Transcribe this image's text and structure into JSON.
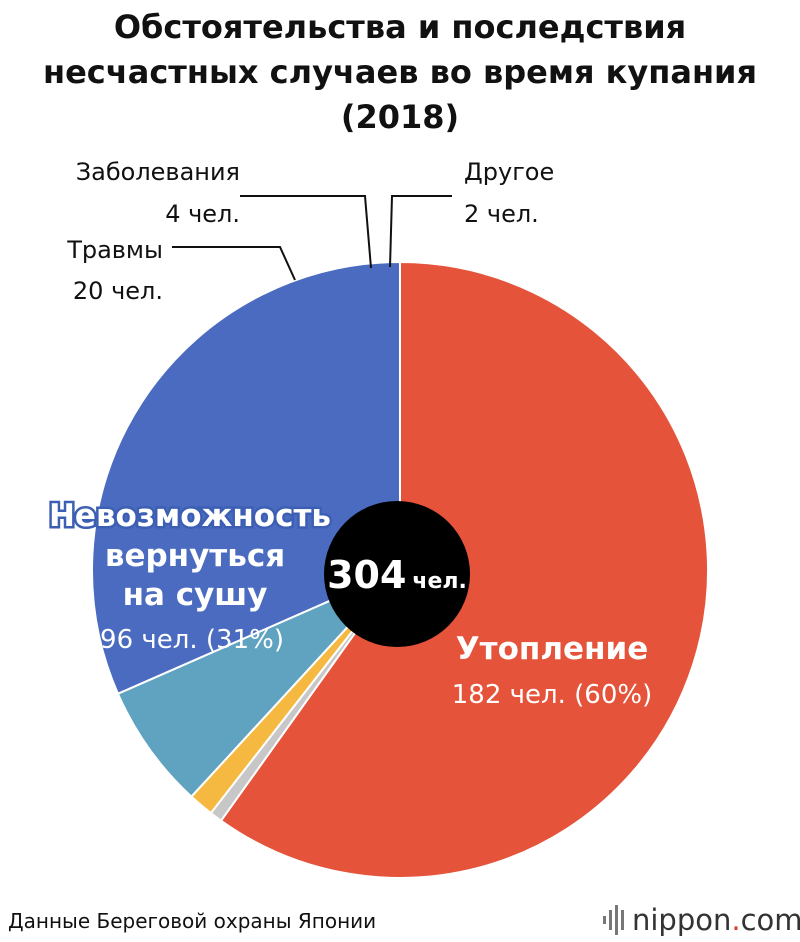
{
  "chart_data": {
    "type": "pie",
    "title": "Обстоятельства и последствия несчастных случаев во время купания (2018)",
    "title_lines": [
      "Обстоятельства и последствия",
      "несчастных случаев во время купания",
      "(2018)"
    ],
    "total": {
      "value": "304",
      "unit": "чел."
    },
    "slices": [
      {
        "name": "Утопление",
        "value": 182,
        "value_label": "182 чел. (60%)",
        "color": "#e5533a"
      },
      {
        "name": "Другое",
        "value": 2,
        "value_label": "2 чел.",
        "color": "#c7c7c7"
      },
      {
        "name": "Заболевания",
        "value": 4,
        "value_label": "4 чел.",
        "color": "#f5b942"
      },
      {
        "name": "Травмы",
        "value": 20,
        "value_label": "20 чел.",
        "color": "#5fa3c0"
      },
      {
        "name": "Невозможность вернуться на сушу",
        "name_lines": [
          "Невозможность",
          "вернуться",
          "на сушу"
        ],
        "value": 96,
        "value_label": "96 чел. (31%)",
        "color": "#4a6bbf"
      }
    ]
  },
  "footer": {
    "source": "Данные Береговой охраны Японии",
    "brand_main": "nippon",
    "brand_dot": ".",
    "brand_tld": "com"
  }
}
